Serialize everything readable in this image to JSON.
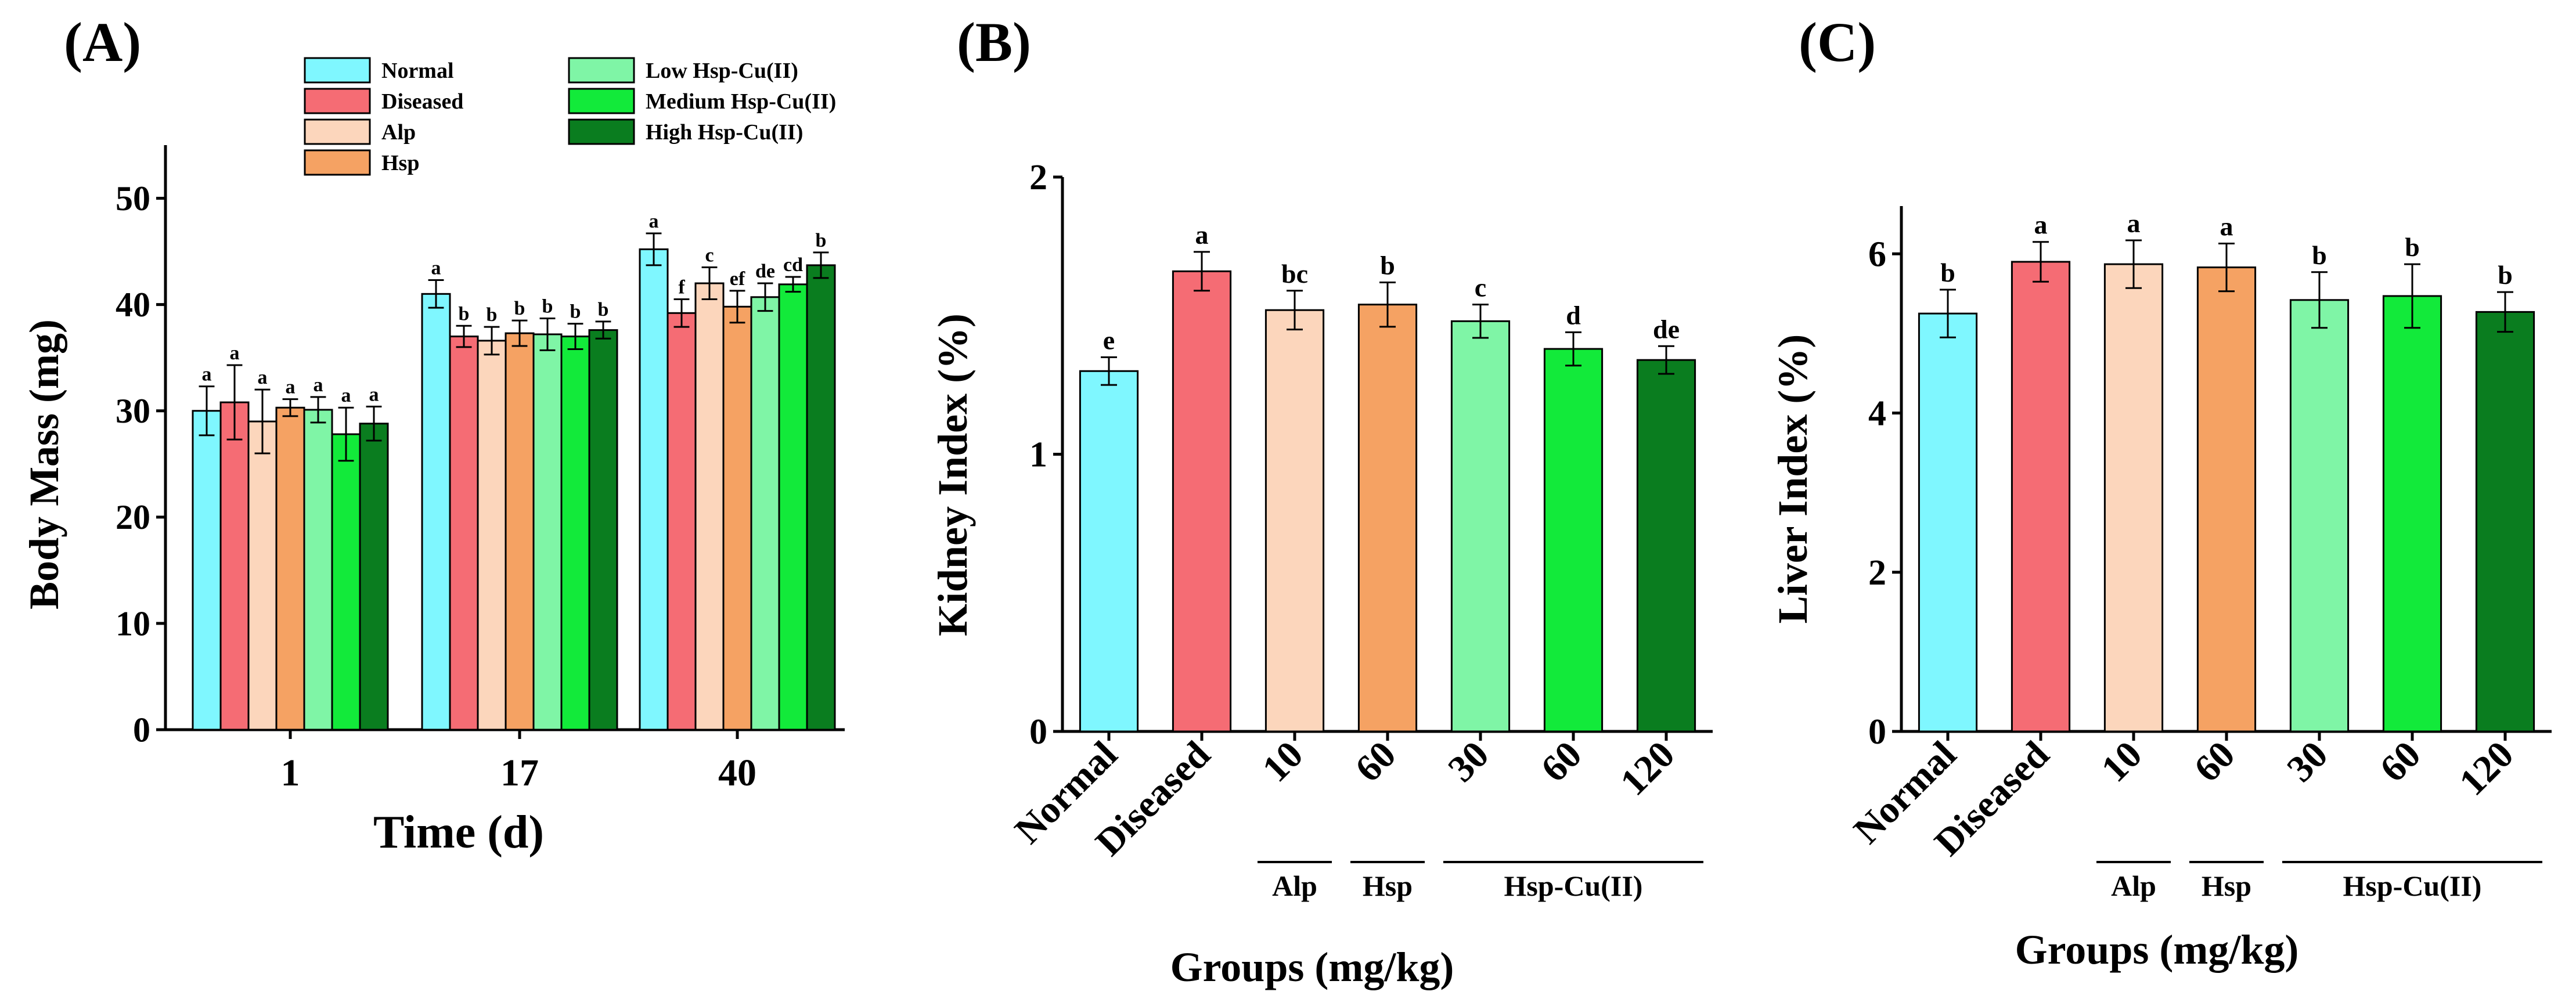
{
  "figure": {
    "panels": [
      "(A)",
      "(B)",
      "(C)"
    ]
  },
  "colors": {
    "Normal": "#7ff7ff",
    "Diseased": "#f56c74",
    "Alp": "#fcd6bc",
    "Hsp": "#f5a263",
    "Low Hsp-Cu(II)": "#7ff5a6",
    "Medium Hsp-Cu(II)": "#12ea3a",
    "High Hsp-Cu(II)": "#0a7d1f"
  },
  "chart_data": [
    {
      "panel": "(A)",
      "type": "bar",
      "xlabel": "Time (d)",
      "ylabel": "Body Mass (mg)",
      "ylim": [
        0,
        55
      ],
      "yticks": [
        0,
        10,
        20,
        30,
        40,
        50
      ],
      "categories": [
        "1",
        "17",
        "40"
      ],
      "legend_position": "top-right",
      "series": [
        {
          "name": "Normal",
          "values": [
            30.0,
            41.0,
            45.2
          ],
          "errors": [
            2.3,
            1.3,
            1.5
          ],
          "labels": [
            "a",
            "a",
            "a"
          ]
        },
        {
          "name": "Diseased",
          "values": [
            30.8,
            37.0,
            39.2
          ],
          "errors": [
            3.5,
            1.0,
            1.3
          ],
          "labels": [
            "a",
            "b",
            "f"
          ]
        },
        {
          "name": "Alp",
          "values": [
            29.0,
            36.6,
            42.0
          ],
          "errors": [
            3.0,
            1.3,
            1.5
          ],
          "labels": [
            "a",
            "b",
            "c"
          ]
        },
        {
          "name": "Hsp",
          "values": [
            30.3,
            37.3,
            39.8
          ],
          "errors": [
            0.8,
            1.2,
            1.5
          ],
          "labels": [
            "a",
            "b",
            "ef"
          ]
        },
        {
          "name": "Low Hsp-Cu(II)",
          "values": [
            30.1,
            37.2,
            40.7
          ],
          "errors": [
            1.2,
            1.5,
            1.3
          ],
          "labels": [
            "a",
            "b",
            "de"
          ]
        },
        {
          "name": "Medium Hsp-Cu(II)",
          "values": [
            27.8,
            37.0,
            41.9
          ],
          "errors": [
            2.5,
            1.2,
            0.7
          ],
          "labels": [
            "a",
            "b",
            "cd"
          ]
        },
        {
          "name": "High Hsp-Cu(II)",
          "values": [
            28.8,
            37.6,
            43.7
          ],
          "errors": [
            1.6,
            0.8,
            1.2
          ],
          "labels": [
            "a",
            "b",
            "b"
          ]
        }
      ]
    },
    {
      "panel": "(B)",
      "type": "bar",
      "xlabel": "Groups (mg/kg)",
      "ylabel": "Kidney Index (%)",
      "ylim": [
        0,
        2.0
      ],
      "yticks": [
        0,
        1,
        2
      ],
      "categories": [
        "Normal",
        "Diseased",
        "10",
        "60",
        "30",
        "60",
        "120"
      ],
      "values": [
        1.3,
        1.66,
        1.52,
        1.54,
        1.48,
        1.38,
        1.34
      ],
      "errors": [
        0.05,
        0.07,
        0.07,
        0.08,
        0.06,
        0.06,
        0.05
      ],
      "labels": [
        "e",
        "a",
        "bc",
        "b",
        "c",
        "d",
        "de"
      ],
      "groups": [
        {
          "label": "Alp",
          "from": 2,
          "to": 2
        },
        {
          "label": "Hsp",
          "from": 3,
          "to": 3
        },
        {
          "label": "Hsp-Cu(II)",
          "from": 4,
          "to": 6
        }
      ]
    },
    {
      "panel": "(C)",
      "type": "bar",
      "xlabel": "Groups (mg/kg)",
      "ylabel": "Liver Index (%)",
      "ylim": [
        0,
        6.6
      ],
      "yticks": [
        0,
        2,
        4,
        6
      ],
      "categories": [
        "Normal",
        "Diseased",
        "10",
        "60",
        "30",
        "60",
        "120"
      ],
      "values": [
        5.25,
        5.9,
        5.87,
        5.83,
        5.42,
        5.47,
        5.27
      ],
      "errors": [
        0.3,
        0.25,
        0.3,
        0.3,
        0.35,
        0.4,
        0.25
      ],
      "labels": [
        "b",
        "a",
        "a",
        "a",
        "b",
        "b",
        "b"
      ],
      "groups": [
        {
          "label": "Alp",
          "from": 2,
          "to": 2
        },
        {
          "label": "Hsp",
          "from": 3,
          "to": 3
        },
        {
          "label": "Hsp-Cu(II)",
          "from": 4,
          "to": 6
        }
      ]
    }
  ]
}
